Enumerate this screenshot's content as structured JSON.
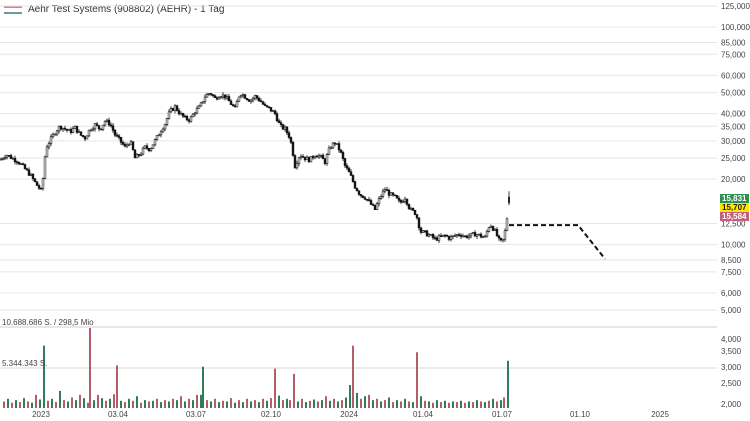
{
  "header": {
    "title": "Aehr Test Systems (908802) (AEHR) - 1 Tag"
  },
  "colors": {
    "up": "#2f7d5a",
    "down": "#b45c6a",
    "candle": "#111111",
    "grid": "#e6e6e6",
    "tag_green": "#2f8f4e",
    "tag_yellow": "#ffe600",
    "tag_red": "#c0607a"
  },
  "chart_data": {
    "type": "candlestick",
    "yscale": "log",
    "ylim": [
      4.6,
      125
    ],
    "price_ticks": [
      "125,000",
      "100,000",
      "85,000",
      "75,000",
      "60,000",
      "50,000",
      "40,000",
      "35,000",
      "30,000",
      "25,000",
      "20,000",
      "12,500",
      "10,000",
      "8,500",
      "7,500",
      "6,000",
      "5,000"
    ],
    "x_ticks": [
      "2023",
      "03.04",
      "03.07",
      "02.10",
      "2024",
      "01.04",
      "01.07",
      "01.10",
      "2025"
    ],
    "price_tags": [
      {
        "label": "15,831",
        "value": 15.831,
        "color": "green"
      },
      {
        "label": "15,707",
        "value": 15.707,
        "color": "yellow"
      },
      {
        "label": "15,584",
        "value": 15.584,
        "color": "red"
      }
    ],
    "price_path": [
      [
        0,
        24.5
      ],
      [
        6,
        26.0
      ],
      [
        12,
        25.0
      ],
      [
        18,
        24.2
      ],
      [
        24,
        22.5
      ],
      [
        30,
        21.0
      ],
      [
        36,
        19.0
      ],
      [
        42,
        17.5
      ],
      [
        46,
        28.0
      ],
      [
        50,
        30.0
      ],
      [
        55,
        33.0
      ],
      [
        60,
        35.0
      ],
      [
        65,
        34.0
      ],
      [
        70,
        33.0
      ],
      [
        75,
        34.5
      ],
      [
        80,
        32.0
      ],
      [
        85,
        31.0
      ],
      [
        90,
        34.0
      ],
      [
        95,
        35.5
      ],
      [
        100,
        34.0
      ],
      [
        105,
        37.0
      ],
      [
        110,
        36.0
      ],
      [
        115,
        32.0
      ],
      [
        120,
        30.0
      ],
      [
        125,
        28.0
      ],
      [
        130,
        30.0
      ],
      [
        135,
        25.0
      ],
      [
        140,
        26.0
      ],
      [
        145,
        28.0
      ],
      [
        150,
        27.5
      ],
      [
        155,
        30.0
      ],
      [
        160,
        33.0
      ],
      [
        165,
        36.0
      ],
      [
        170,
        41.0
      ],
      [
        175,
        43.0
      ],
      [
        180,
        40.0
      ],
      [
        185,
        38.0
      ],
      [
        190,
        37.5
      ],
      [
        195,
        41.0
      ],
      [
        200,
        43.0
      ],
      [
        205,
        48.0
      ],
      [
        210,
        50.0
      ],
      [
        215,
        47.0
      ],
      [
        220,
        49.0
      ],
      [
        225,
        48.0
      ],
      [
        230,
        45.0
      ],
      [
        235,
        42.0
      ],
      [
        240,
        50.0
      ],
      [
        245,
        48.0
      ],
      [
        250,
        46.0
      ],
      [
        255,
        48.0
      ],
      [
        260,
        46.0
      ],
      [
        265,
        43.0
      ],
      [
        270,
        42.0
      ],
      [
        275,
        40.0
      ],
      [
        280,
        35.0
      ],
      [
        285,
        34.0
      ],
      [
        290,
        31.0
      ],
      [
        295,
        23.0
      ],
      [
        300,
        26.0
      ],
      [
        305,
        25.0
      ],
      [
        310,
        24.5
      ],
      [
        315,
        26.0
      ],
      [
        320,
        25.5
      ],
      [
        325,
        24.0
      ],
      [
        330,
        28.0
      ],
      [
        335,
        29.5
      ],
      [
        340,
        27.0
      ],
      [
        345,
        23.0
      ],
      [
        350,
        21.0
      ],
      [
        355,
        18.5
      ],
      [
        360,
        17.0
      ],
      [
        365,
        16.5
      ],
      [
        370,
        15.5
      ],
      [
        375,
        14.5
      ],
      [
        380,
        16.5
      ],
      [
        385,
        18.0
      ],
      [
        390,
        17.0
      ],
      [
        395,
        16.5
      ],
      [
        400,
        15.5
      ],
      [
        405,
        16.5
      ],
      [
        410,
        14.5
      ],
      [
        415,
        14.0
      ],
      [
        418,
        13.0
      ],
      [
        420,
        11.5
      ],
      [
        425,
        11.3
      ],
      [
        430,
        11.0
      ],
      [
        435,
        10.6
      ],
      [
        440,
        10.8
      ],
      [
        445,
        11.0
      ],
      [
        450,
        10.7
      ],
      [
        455,
        11.0
      ],
      [
        460,
        11.2
      ],
      [
        465,
        10.9
      ],
      [
        470,
        11.0
      ],
      [
        475,
        11.2
      ],
      [
        480,
        11.0
      ],
      [
        485,
        10.8
      ],
      [
        490,
        12.5
      ],
      [
        495,
        11.5
      ],
      [
        500,
        10.2
      ],
      [
        503,
        10.5
      ],
      [
        506,
        12.0
      ],
      [
        509,
        15.7
      ]
    ],
    "projection": [
      [
        509,
        12.3
      ],
      [
        578,
        12.3
      ],
      [
        605,
        8.6
      ]
    ],
    "volume_axis_ticks": [
      "4,000",
      "3,500",
      "3,000",
      "2,500",
      "2,000"
    ],
    "volume_labels": [
      "10.688.686 S. / 298,5 Mio",
      "5.344.343 S."
    ],
    "volume_bars": [
      [
        4,
        10,
        "d"
      ],
      [
        8,
        14,
        "u"
      ],
      [
        12,
        8,
        "d"
      ],
      [
        16,
        12,
        "u"
      ],
      [
        20,
        9,
        "d"
      ],
      [
        24,
        15,
        "u"
      ],
      [
        28,
        10,
        "d"
      ],
      [
        32,
        8,
        "u"
      ],
      [
        36,
        20,
        "d"
      ],
      [
        40,
        13,
        "u"
      ],
      [
        44,
        95,
        "u"
      ],
      [
        48,
        11,
        "d"
      ],
      [
        52,
        14,
        "u"
      ],
      [
        56,
        9,
        "d"
      ],
      [
        60,
        26,
        "u"
      ],
      [
        64,
        12,
        "d"
      ],
      [
        68,
        10,
        "u"
      ],
      [
        72,
        16,
        "d"
      ],
      [
        76,
        12,
        "u"
      ],
      [
        80,
        20,
        "d"
      ],
      [
        84,
        15,
        "u"
      ],
      [
        88,
        8,
        "d"
      ],
      [
        90,
        122,
        "d"
      ],
      [
        94,
        12,
        "u"
      ],
      [
        98,
        20,
        "d"
      ],
      [
        102,
        15,
        "u"
      ],
      [
        106,
        11,
        "d"
      ],
      [
        110,
        14,
        "u"
      ],
      [
        114,
        21,
        "d"
      ],
      [
        117,
        65,
        "d"
      ],
      [
        121,
        11,
        "u"
      ],
      [
        125,
        9,
        "d"
      ],
      [
        129,
        14,
        "u"
      ],
      [
        133,
        11,
        "d"
      ],
      [
        137,
        18,
        "u"
      ],
      [
        141,
        8,
        "d"
      ],
      [
        145,
        12,
        "u"
      ],
      [
        149,
        10,
        "d"
      ],
      [
        153,
        11,
        "u"
      ],
      [
        157,
        14,
        "d"
      ],
      [
        161,
        9,
        "u"
      ],
      [
        165,
        12,
        "d"
      ],
      [
        169,
        10,
        "u"
      ],
      [
        173,
        14,
        "d"
      ],
      [
        177,
        12,
        "u"
      ],
      [
        181,
        18,
        "d"
      ],
      [
        185,
        10,
        "u"
      ],
      [
        189,
        14,
        "d"
      ],
      [
        193,
        12,
        "u"
      ],
      [
        197,
        20,
        "d"
      ],
      [
        201,
        20,
        "u"
      ],
      [
        203,
        63,
        "u"
      ],
      [
        207,
        12,
        "d"
      ],
      [
        211,
        10,
        "u"
      ],
      [
        215,
        14,
        "d"
      ],
      [
        219,
        9,
        "u"
      ],
      [
        223,
        11,
        "d"
      ],
      [
        227,
        10,
        "u"
      ],
      [
        231,
        15,
        "d"
      ],
      [
        235,
        8,
        "u"
      ],
      [
        239,
        12,
        "d"
      ],
      [
        243,
        9,
        "u"
      ],
      [
        247,
        14,
        "d"
      ],
      [
        251,
        10,
        "u"
      ],
      [
        255,
        12,
        "d"
      ],
      [
        259,
        9,
        "u"
      ],
      [
        263,
        14,
        "d"
      ],
      [
        267,
        11,
        "u"
      ],
      [
        271,
        15,
        "d"
      ],
      [
        275,
        60,
        "d"
      ],
      [
        279,
        19,
        "u"
      ],
      [
        283,
        12,
        "d"
      ],
      [
        287,
        14,
        "u"
      ],
      [
        290,
        12,
        "d"
      ],
      [
        294,
        52,
        "d"
      ],
      [
        298,
        10,
        "u"
      ],
      [
        302,
        14,
        "d"
      ],
      [
        306,
        9,
        "u"
      ],
      [
        310,
        11,
        "d"
      ],
      [
        314,
        13,
        "u"
      ],
      [
        318,
        10,
        "d"
      ],
      [
        322,
        12,
        "u"
      ],
      [
        326,
        18,
        "d"
      ],
      [
        330,
        11,
        "u"
      ],
      [
        334,
        14,
        "d"
      ],
      [
        338,
        10,
        "u"
      ],
      [
        342,
        12,
        "d"
      ],
      [
        346,
        16,
        "u"
      ],
      [
        350,
        35,
        "u"
      ],
      [
        353,
        95,
        "d"
      ],
      [
        357,
        23,
        "u"
      ],
      [
        361,
        14,
        "d"
      ],
      [
        365,
        18,
        "u"
      ],
      [
        369,
        20,
        "d"
      ],
      [
        373,
        12,
        "u"
      ],
      [
        377,
        14,
        "d"
      ],
      [
        381,
        10,
        "u"
      ],
      [
        385,
        12,
        "d"
      ],
      [
        389,
        16,
        "u"
      ],
      [
        393,
        9,
        "d"
      ],
      [
        397,
        12,
        "u"
      ],
      [
        401,
        10,
        "d"
      ],
      [
        405,
        14,
        "u"
      ],
      [
        409,
        10,
        "d"
      ],
      [
        413,
        9,
        "u"
      ],
      [
        417,
        85,
        "d"
      ],
      [
        421,
        18,
        "u"
      ],
      [
        425,
        11,
        "d"
      ],
      [
        429,
        10,
        "u"
      ],
      [
        433,
        8,
        "d"
      ],
      [
        437,
        12,
        "u"
      ],
      [
        441,
        9,
        "d"
      ],
      [
        445,
        11,
        "u"
      ],
      [
        449,
        8,
        "d"
      ],
      [
        453,
        10,
        "u"
      ],
      [
        457,
        9,
        "d"
      ],
      [
        461,
        11,
        "u"
      ],
      [
        465,
        8,
        "d"
      ],
      [
        469,
        10,
        "u"
      ],
      [
        473,
        9,
        "d"
      ],
      [
        477,
        12,
        "u"
      ],
      [
        481,
        10,
        "d"
      ],
      [
        485,
        9,
        "u"
      ],
      [
        489,
        11,
        "d"
      ],
      [
        493,
        14,
        "u"
      ],
      [
        497,
        10,
        "d"
      ],
      [
        501,
        12,
        "u"
      ],
      [
        504,
        16,
        "d"
      ],
      [
        508,
        72,
        "u"
      ]
    ]
  }
}
